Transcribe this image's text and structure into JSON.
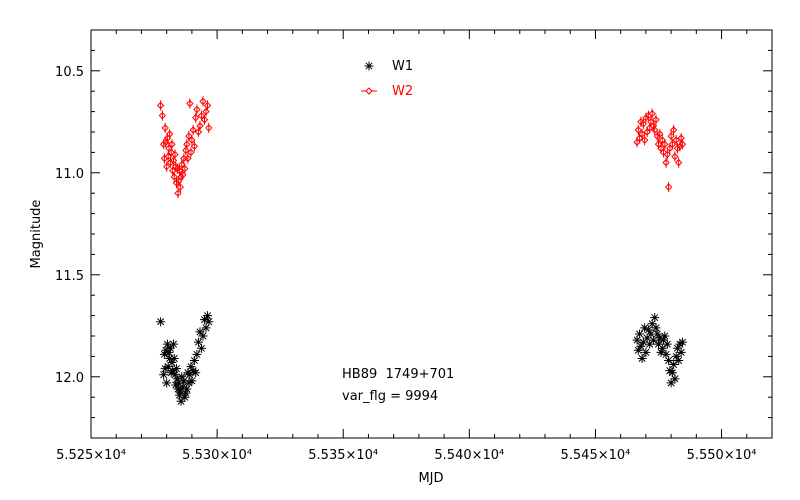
{
  "chart_data": {
    "type": "scatter",
    "xlabel": "MJD",
    "ylabel": "Magnitude",
    "xlim": [
      55250,
      55520
    ],
    "ylim": [
      12.3,
      10.3
    ],
    "x_ticks": [
      {
        "value": 55250,
        "label": "5.525×10⁴"
      },
      {
        "value": 55300,
        "label": "5.530×10⁴"
      },
      {
        "value": 55350,
        "label": "5.535×10⁴"
      },
      {
        "value": 55400,
        "label": "5.540×10⁴"
      },
      {
        "value": 55450,
        "label": "5.545×10⁴"
      },
      {
        "value": 55500,
        "label": "5.550×10⁴"
      }
    ],
    "y_ticks": [
      {
        "value": 10.5,
        "label": "10.5"
      },
      {
        "value": 11.0,
        "label": "11.0"
      },
      {
        "value": 11.5,
        "label": "11.5"
      },
      {
        "value": 12.0,
        "label": "12.0"
      }
    ],
    "legend_position": "top-center",
    "annotations": [
      "HB89  1749+701",
      "var_flg = 9994"
    ],
    "grid": false,
    "series": [
      {
        "name": "W1",
        "marker": "asterisk",
        "color": "#000000",
        "x": [
          55277.6,
          55278.8,
          55279.1,
          55279.4,
          55279.7,
          55280.0,
          55280.3,
          55280.6,
          55280.9,
          55281.2,
          55281.5,
          55281.8,
          55282.1,
          55282.4,
          55282.7,
          55283.0,
          55283.3,
          55283.6,
          55283.9,
          55284.2,
          55284.5,
          55284.8,
          55285.1,
          55285.4,
          55285.7,
          55286.0,
          55286.4,
          55286.8,
          55287.2,
          55287.6,
          55288.0,
          55288.4,
          55288.8,
          55289.2,
          55289.6,
          55290.0,
          55290.5,
          55291.0,
          55291.5,
          55292.0,
          55292.6,
          55293.2,
          55293.8,
          55294.4,
          55295.0,
          55295.6,
          55296.2,
          55296.7,
          55466.5,
          55467.0,
          55467.5,
          55468.0,
          55468.5,
          55469.0,
          55469.5,
          55470.0,
          55470.5,
          55471.0,
          55471.5,
          55472.0,
          55472.5,
          55473.0,
          55473.5,
          55474.0,
          55474.5,
          55475.0,
          55475.5,
          55476.0,
          55476.5,
          55477.0,
          55477.5,
          55478.0,
          55478.5,
          55479.0,
          55479.5,
          55480.0,
          55480.5,
          55481.0,
          55481.5,
          55482.0,
          55482.5,
          55483.0,
          55483.5,
          55484.0,
          55484.5
        ],
        "y": [
          11.73,
          11.99,
          11.89,
          11.96,
          11.87,
          12.03,
          11.84,
          11.95,
          11.88,
          11.91,
          11.86,
          11.98,
          11.93,
          11.97,
          11.84,
          11.91,
          11.99,
          12.04,
          11.96,
          12.01,
          12.06,
          12.03,
          12.09,
          12.07,
          12.12,
          12.0,
          12.05,
          12.02,
          12.1,
          12.08,
          12.06,
          11.98,
          12.03,
          11.99,
          11.95,
          12.02,
          11.97,
          11.92,
          11.98,
          11.89,
          11.83,
          11.78,
          11.86,
          11.8,
          11.72,
          11.76,
          11.7,
          11.73,
          11.82,
          11.87,
          11.79,
          11.85,
          11.91,
          11.83,
          11.76,
          11.88,
          11.81,
          11.77,
          11.84,
          11.79,
          11.74,
          11.82,
          11.71,
          11.76,
          11.79,
          11.84,
          11.81,
          11.88,
          11.86,
          11.82,
          11.8,
          11.89,
          11.84,
          11.92,
          11.97,
          12.03,
          11.98,
          11.94,
          12.01,
          11.9,
          11.86,
          11.92,
          11.84,
          11.88,
          11.83
        ]
      },
      {
        "name": "W2",
        "marker": "diamond-errorbar",
        "color": "#ff0000",
        "x": [
          55277.6,
          55278.3,
          55278.8,
          55279.1,
          55279.4,
          55279.7,
          55280.0,
          55280.3,
          55280.6,
          55280.9,
          55281.2,
          55281.5,
          55281.8,
          55282.1,
          55282.4,
          55282.7,
          55283.0,
          55283.3,
          55283.6,
          55283.9,
          55284.2,
          55284.5,
          55284.8,
          55285.1,
          55285.4,
          55285.7,
          55286.0,
          55286.4,
          55286.8,
          55287.2,
          55287.6,
          55288.0,
          55288.4,
          55288.8,
          55289.2,
          55289.6,
          55290.0,
          55290.5,
          55291.0,
          55291.5,
          55292.0,
          55292.6,
          55293.2,
          55293.8,
          55294.4,
          55295.0,
          55295.6,
          55296.2,
          55296.7,
          55466.5,
          55467.0,
          55467.5,
          55468.0,
          55468.5,
          55469.0,
          55469.5,
          55470.0,
          55470.5,
          55471.0,
          55471.5,
          55472.0,
          55472.5,
          55473.0,
          55473.5,
          55474.0,
          55474.5,
          55475.0,
          55475.5,
          55476.0,
          55476.5,
          55477.0,
          55477.5,
          55478.0,
          55478.5,
          55479.0,
          55479.5,
          55480.0,
          55480.5,
          55481.0,
          55481.5,
          55482.0,
          55482.5,
          55483.0,
          55483.5,
          55484.0,
          55484.5
        ],
        "y": [
          10.67,
          10.72,
          10.86,
          10.93,
          10.78,
          10.85,
          10.97,
          10.83,
          10.92,
          10.88,
          10.81,
          10.95,
          10.9,
          10.86,
          10.99,
          10.94,
          11.02,
          10.91,
          10.97,
          11.05,
          10.98,
          11.1,
          11.04,
          10.99,
          11.07,
          11.02,
          10.96,
          11.01,
          10.93,
          10.98,
          10.89,
          10.86,
          10.93,
          10.82,
          10.66,
          10.9,
          10.84,
          10.79,
          10.87,
          10.73,
          10.69,
          10.8,
          10.77,
          10.72,
          10.65,
          10.74,
          10.7,
          10.67,
          10.78,
          10.85,
          10.79,
          10.83,
          10.75,
          10.81,
          10.76,
          10.84,
          10.73,
          10.8,
          10.72,
          10.78,
          10.75,
          10.71,
          10.77,
          10.79,
          10.74,
          10.82,
          10.86,
          10.81,
          10.88,
          10.84,
          10.9,
          10.86,
          10.95,
          10.91,
          11.07,
          10.88,
          10.82,
          10.86,
          10.79,
          10.92,
          10.84,
          10.88,
          10.95,
          10.87,
          10.83,
          10.86
        ],
        "yerr": 0.025
      }
    ]
  }
}
